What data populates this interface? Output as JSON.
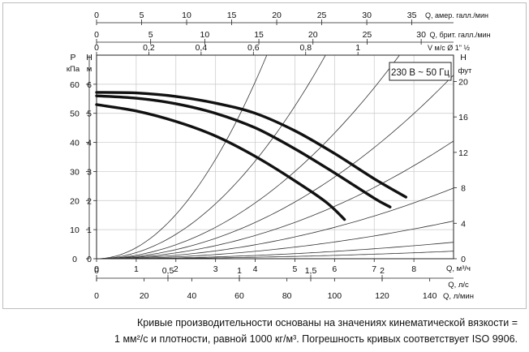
{
  "chart_data": {
    "type": "line",
    "title": "",
    "voltage_box": "230 В ~ 50 Гц",
    "axes": {
      "left_kpa": {
        "title_symbol": "P",
        "title_unit": "кПа",
        "ticks": [
          "0",
          "10",
          "20",
          "30",
          "40",
          "50",
          "60"
        ],
        "range": [
          0,
          70
        ]
      },
      "left_m": {
        "title_symbol": "H",
        "title_unit": "м",
        "ticks": [
          "0",
          "1",
          "2",
          "3",
          "4",
          "5",
          "6"
        ],
        "range": [
          0,
          7
        ]
      },
      "right_ft": {
        "title_symbol": "H",
        "title_unit": "фут",
        "ticks": [
          "0",
          "4",
          "8",
          "12",
          "16",
          "20"
        ],
        "range": [
          0,
          22.97
        ]
      },
      "bottom_q_m3h": {
        "label": "Q, м³/ч",
        "ticks": [
          "0",
          "1",
          "2",
          "3",
          "4",
          "5",
          "6",
          "7",
          "8"
        ],
        "range": [
          0,
          9
        ]
      },
      "bottom_q_ls": {
        "label": "Q, л/с",
        "ticks": [
          "0",
          "0,5",
          "1",
          "1,5",
          "2"
        ]
      },
      "bottom_q_lmin": {
        "label": "Q, л/мин",
        "ticks": [
          "0",
          "20",
          "40",
          "60",
          "80",
          "100",
          "120",
          "140"
        ]
      },
      "top_us_gpm": {
        "label": "Q, амер. галл./мин",
        "ticks": [
          "0",
          "5",
          "10",
          "15",
          "20",
          "25",
          "30",
          "35"
        ]
      },
      "top_uk_gpm": {
        "label": "Q, брит. галл./мин",
        "ticks": [
          "0",
          "5",
          "10",
          "15",
          "20",
          "25",
          "30"
        ]
      },
      "top_velocity": {
        "label": "V м/с Ø 1\" ½",
        "ticks": [
          "0",
          "0,2",
          "0,4",
          "0,6",
          "0,8",
          "1"
        ]
      }
    },
    "series": [
      {
        "points": [
          [
            0,
            5.72
          ],
          [
            1,
            5.7
          ],
          [
            2,
            5.58
          ],
          [
            3,
            5.35
          ],
          [
            4,
            5.0
          ],
          [
            5,
            4.4
          ],
          [
            6,
            3.62
          ],
          [
            7,
            2.75
          ],
          [
            7.8,
            2.12
          ]
        ]
      },
      {
        "points": [
          [
            0,
            5.6
          ],
          [
            1,
            5.52
          ],
          [
            2,
            5.33
          ],
          [
            3,
            5.0
          ],
          [
            4,
            4.5
          ],
          [
            5,
            3.78
          ],
          [
            6,
            2.95
          ],
          [
            7,
            2.08
          ],
          [
            7.4,
            1.78
          ]
        ]
      },
      {
        "points": [
          [
            0,
            5.3
          ],
          [
            1,
            5.08
          ],
          [
            2,
            4.72
          ],
          [
            3,
            4.22
          ],
          [
            4,
            3.52
          ],
          [
            5,
            2.68
          ],
          [
            5.8,
            1.93
          ],
          [
            6.25,
            1.35
          ]
        ]
      }
    ],
    "system_curves_m_per_m3h2": [
      0.38,
      0.21,
      0.12,
      0.078,
      0.05,
      0.03,
      0.016,
      0.007,
      0.0032
    ],
    "grid": true
  },
  "caption": {
    "line1": "Кривые производительности основаны на значениях кинематической вязкости =",
    "line2": "1 мм²/с и плотности, равной 1000 кг/м³. Погрешность кривых соответствует ISO 9906."
  }
}
